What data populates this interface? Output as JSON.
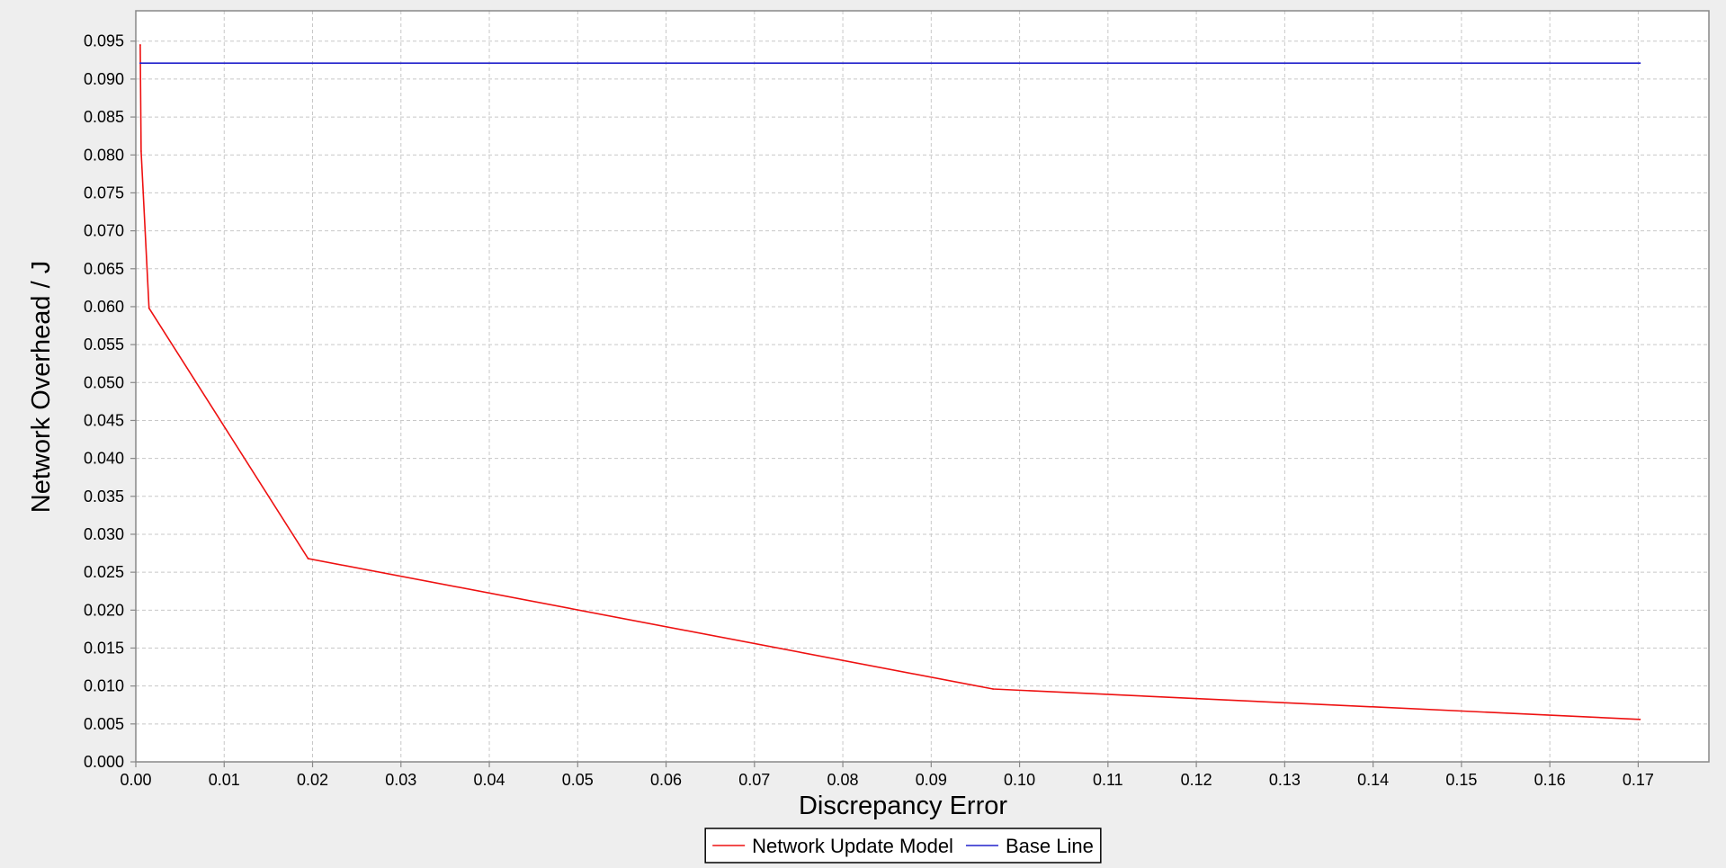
{
  "chart_data": {
    "type": "line",
    "title": "",
    "xlabel": "Discrepancy Error",
    "ylabel": "Network Overhead  / J",
    "xlim": [
      0,
      0.178
    ],
    "ylim": [
      0,
      0.099
    ],
    "xticks": [
      "0.00",
      "0.01",
      "0.02",
      "0.03",
      "0.04",
      "0.05",
      "0.06",
      "0.07",
      "0.08",
      "0.09",
      "0.10",
      "0.11",
      "0.12",
      "0.13",
      "0.14",
      "0.15",
      "0.16",
      "0.17"
    ],
    "yticks": [
      "0.000",
      "0.005",
      "0.010",
      "0.015",
      "0.020",
      "0.025",
      "0.030",
      "0.035",
      "0.040",
      "0.045",
      "0.050",
      "0.055",
      "0.060",
      "0.065",
      "0.070",
      "0.075",
      "0.080",
      "0.085",
      "0.090",
      "0.095"
    ],
    "grid": true,
    "legend_position": "bottom-center",
    "series": [
      {
        "name": "Network Update Model",
        "color": "#ee1111",
        "points": [
          [
            0.0005,
            0.0945
          ],
          [
            0.0006,
            0.0805
          ],
          [
            0.0015,
            0.0598
          ],
          [
            0.0195,
            0.0268
          ],
          [
            0.097,
            0.0096
          ],
          [
            0.1702,
            0.0056
          ]
        ]
      },
      {
        "name": "Base Line",
        "color": "#2222cc",
        "points": [
          [
            0.0005,
            0.0921
          ],
          [
            0.1702,
            0.0921
          ]
        ]
      }
    ]
  }
}
